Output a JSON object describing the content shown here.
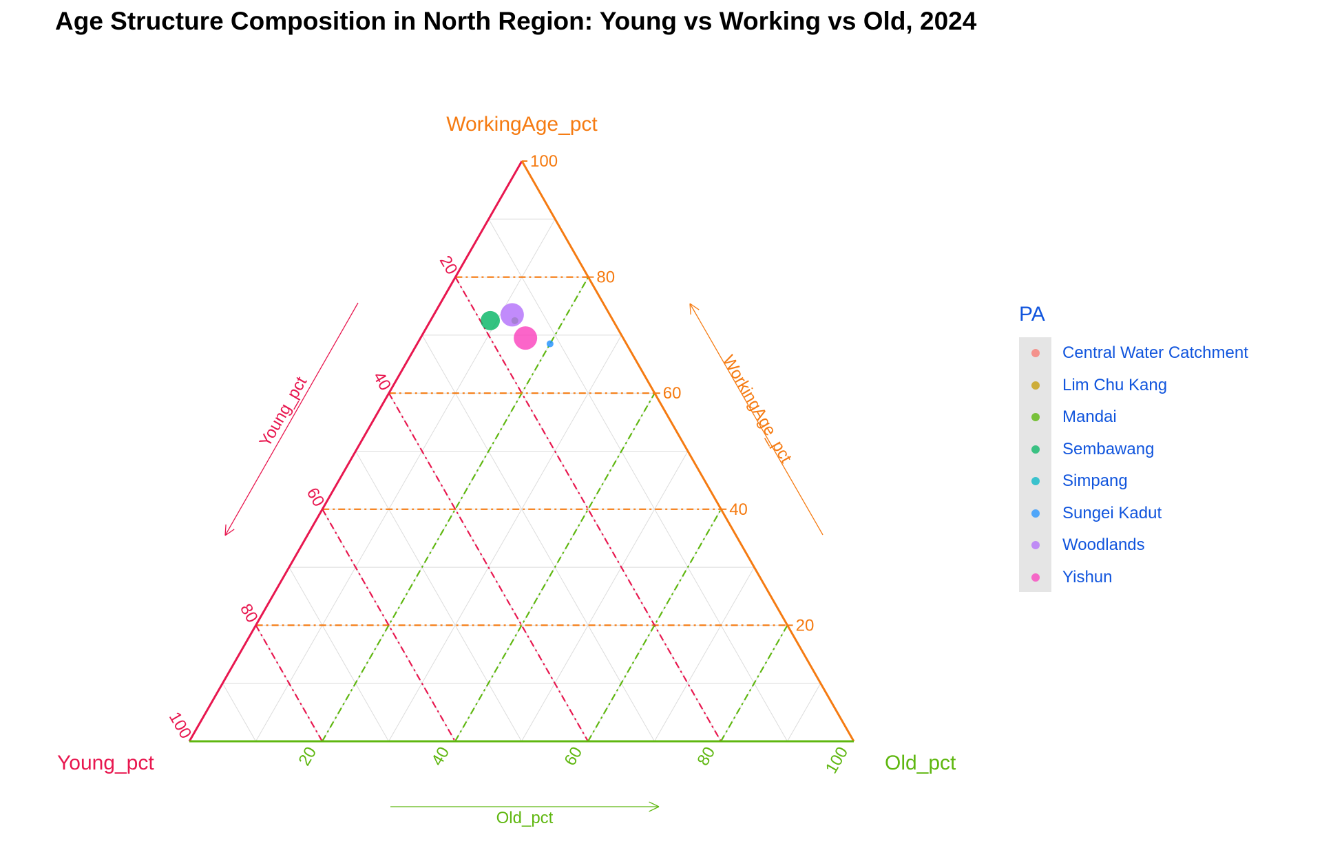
{
  "title": "Age Structure Composition in North Region: Young vs Working vs Old, 2024",
  "colors": {
    "young": "#e8174f",
    "working": "#f57b12",
    "old": "#5fb710",
    "legend_text": "#1155dd",
    "grid": "#dcdcdc"
  },
  "chart_data": {
    "type": "scatter",
    "subtype": "ternary",
    "title": "Age Structure Composition in North Region: Young vs Working vs Old, 2024",
    "axes": {
      "young": {
        "label": "Young_pct",
        "arrow_label": "Young_pct",
        "ticks": [
          20,
          40,
          60,
          80,
          100
        ]
      },
      "working": {
        "label": "WorkingAge_pct",
        "arrow_label": "WorkingAge_pct",
        "ticks": [
          20,
          40,
          60,
          80,
          100
        ]
      },
      "old": {
        "label": "Old_pct",
        "arrow_label": "Old_pct",
        "ticks": [
          20,
          40,
          60,
          80,
          100
        ]
      }
    },
    "grid": true,
    "legend": {
      "title": "PA",
      "position": "right",
      "entries": [
        {
          "name": "Central Water Catchment",
          "color": "#f8766d"
        },
        {
          "name": "Lim Chu Kang",
          "color": "#c49a00"
        },
        {
          "name": "Mandai",
          "color": "#53b400"
        },
        {
          "name": "Sembawang",
          "color": "#00b461"
        },
        {
          "name": "Simpang",
          "color": "#00b6c4"
        },
        {
          "name": "Sungei Kadut",
          "color": "#1e90ff"
        },
        {
          "name": "Woodlands",
          "color": "#b26efa"
        },
        {
          "name": "Yishun",
          "color": "#fa3ebc"
        }
      ]
    },
    "points": [
      {
        "name": "Mandai",
        "young": 14.8,
        "working": 72.5,
        "old": 12.7,
        "size": "small"
      },
      {
        "name": "Sembawang",
        "young": 18.5,
        "working": 72.5,
        "old": 9.0,
        "size": "large"
      },
      {
        "name": "Sungei Kadut",
        "young": 11.5,
        "working": 68.5,
        "old": 20.0,
        "size": "small"
      },
      {
        "name": "Woodlands",
        "young": 14.7,
        "working": 73.5,
        "old": 11.8,
        "size": "largest"
      },
      {
        "name": "Yishun",
        "young": 14.7,
        "working": 69.5,
        "old": 15.8,
        "size": "largest"
      }
    ]
  }
}
